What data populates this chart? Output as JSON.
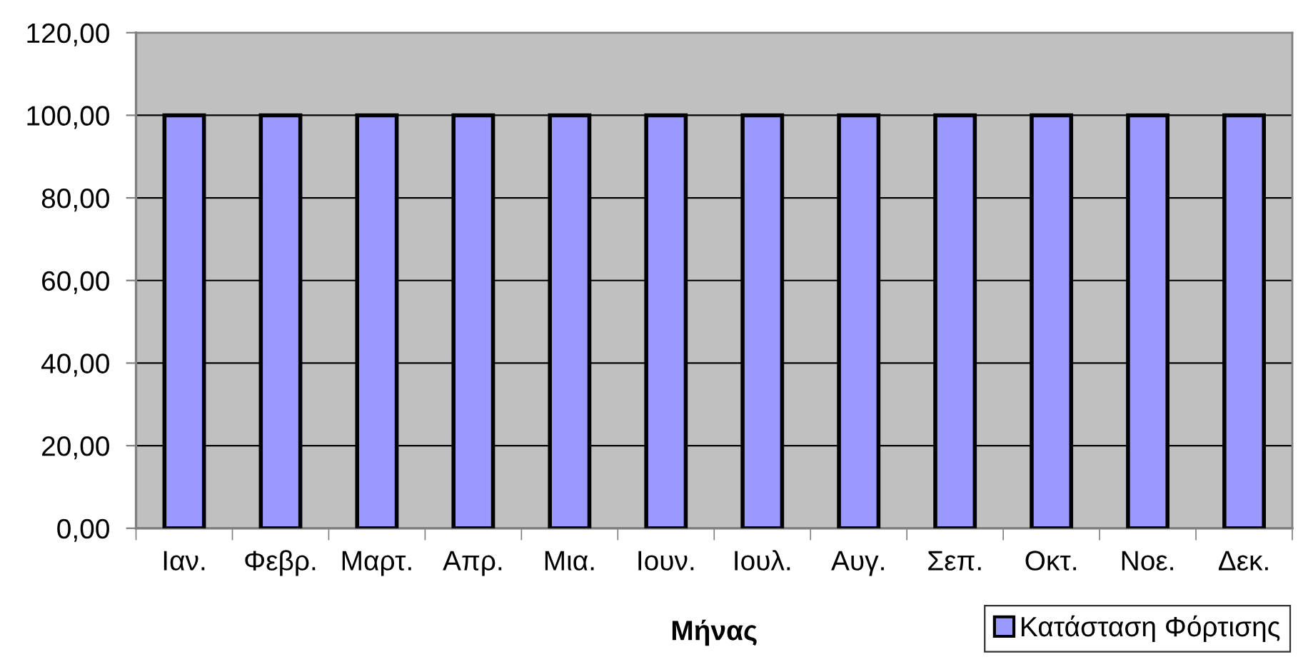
{
  "chart_data": {
    "type": "bar",
    "categories": [
      "Ιαν.",
      "Φεβρ.",
      "Μαρτ.",
      "Απρ.",
      "Μια.",
      "Ιουν.",
      "Ιουλ.",
      "Αυγ.",
      "Σεπ.",
      "Οκτ.",
      "Νοε.",
      "Δεκ."
    ],
    "series": [
      {
        "name": "Κατάσταση Φόρτισης",
        "color": "#9999ff",
        "values": [
          100,
          100,
          100,
          100,
          100,
          100,
          100,
          100,
          100,
          100,
          100,
          100
        ]
      }
    ],
    "xlabel": "Μήνας",
    "ylim": [
      0,
      120
    ],
    "yticks": [
      {
        "value": 0,
        "label": "0,00"
      },
      {
        "value": 20,
        "label": "20,00"
      },
      {
        "value": 40,
        "label": "40,00"
      },
      {
        "value": 60,
        "label": "60,00"
      },
      {
        "value": 80,
        "label": "80,00"
      },
      {
        "value": 100,
        "label": "100,00"
      },
      {
        "value": 120,
        "label": "120,00"
      }
    ],
    "grid": "y",
    "legend": "bottom right"
  }
}
